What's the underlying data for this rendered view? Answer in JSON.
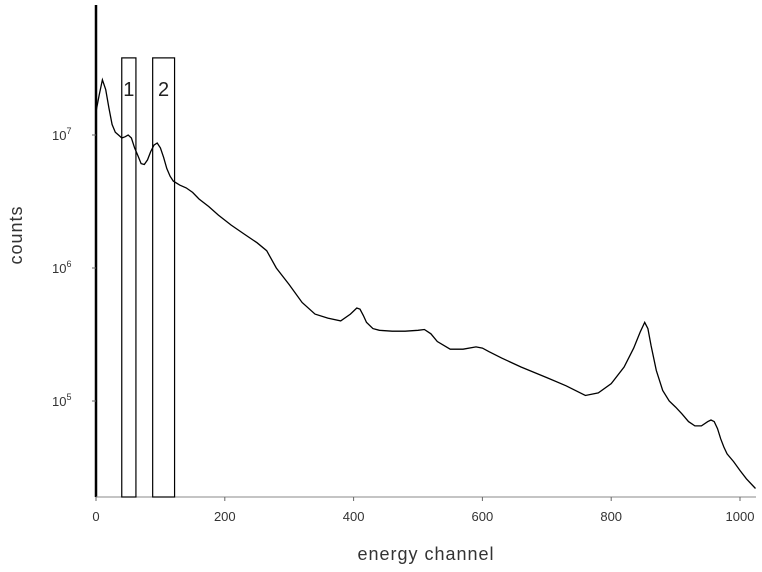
{
  "chart_data": {
    "type": "line",
    "title": "",
    "xlabel": "energy channel",
    "ylabel": "counts",
    "xlim": [
      0,
      1024
    ],
    "ylim": [
      20000,
      100000000
    ],
    "yscale": "log",
    "grid": false,
    "x_ticks": [
      0,
      200,
      400,
      600,
      800,
      1000
    ],
    "y_ticks": [
      {
        "value": 100000,
        "base": "10",
        "exp": "5"
      },
      {
        "value": 1000000,
        "base": "10",
        "exp": "6"
      },
      {
        "value": 10000000,
        "base": "10",
        "exp": "7"
      }
    ],
    "series": [
      {
        "color": "#000000",
        "x": [
          0,
          5,
          10,
          15,
          20,
          25,
          30,
          35,
          40,
          45,
          50,
          55,
          60,
          65,
          70,
          75,
          80,
          85,
          90,
          95,
          100,
          105,
          110,
          115,
          120,
          130,
          140,
          150,
          160,
          175,
          190,
          210,
          230,
          250,
          265,
          280,
          300,
          320,
          340,
          360,
          380,
          395,
          405,
          410,
          415,
          420,
          430,
          440,
          460,
          480,
          500,
          510,
          520,
          530,
          550,
          570,
          590,
          600,
          610,
          630,
          660,
          700,
          730,
          760,
          780,
          800,
          820,
          835,
          845,
          852,
          857,
          862,
          870,
          880,
          890,
          900,
          910,
          920,
          930,
          940,
          950,
          955,
          960,
          965,
          970,
          975,
          980,
          990,
          1000,
          1010,
          1024
        ],
        "y": [
          15000000,
          20000000,
          26000000,
          22000000,
          16000000,
          12000000,
          10500000,
          10000000,
          9500000,
          9700000,
          10000000,
          9500000,
          8000000,
          7000000,
          6100000,
          6000000,
          6500000,
          7500000,
          8400000,
          8700000,
          8000000,
          6800000,
          5600000,
          4900000,
          4500000,
          4200000,
          4000000,
          3700000,
          3300000,
          2900000,
          2500000,
          2100000,
          1800000,
          1550000,
          1350000,
          1000000,
          750000,
          550000,
          450000,
          420000,
          400000,
          450000,
          500000,
          490000,
          440000,
          390000,
          350000,
          340000,
          335000,
          335000,
          340000,
          345000,
          320000,
          280000,
          245000,
          245000,
          255000,
          250000,
          235000,
          210000,
          180000,
          150000,
          130000,
          110000,
          115000,
          135000,
          180000,
          250000,
          330000,
          390000,
          350000,
          260000,
          170000,
          120000,
          100000,
          90000,
          80000,
          70000,
          65000,
          65000,
          70000,
          72000,
          70000,
          62000,
          52000,
          45000,
          40000,
          35000,
          30000,
          26000,
          22000
        ]
      }
    ],
    "annotations": [
      {
        "label": "1",
        "x_start": 40,
        "x_end": 62,
        "y_top": 38000000
      },
      {
        "label": "2",
        "x_start": 88,
        "x_end": 122,
        "y_top": 38000000
      }
    ]
  }
}
